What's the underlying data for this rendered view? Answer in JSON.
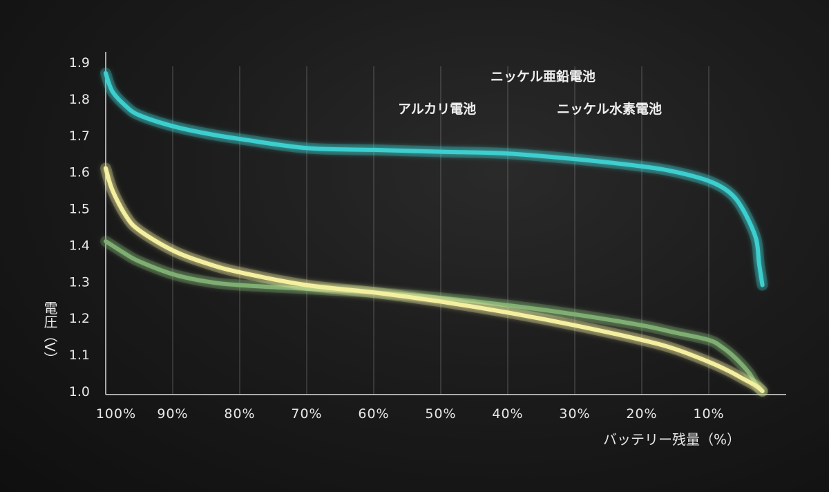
{
  "chart_data": {
    "type": "line",
    "title": "",
    "xlabel": "バッテリー残量（%）",
    "ylabel": "電圧（V）",
    "x_ticks": [
      "100%",
      "90%",
      "80%",
      "70%",
      "60%",
      "50%",
      "40%",
      "30%",
      "20%",
      "10%"
    ],
    "x_tick_values": [
      100,
      90,
      80,
      70,
      60,
      50,
      40,
      30,
      20,
      10
    ],
    "y_ticks": [
      "1.9",
      "1.8",
      "1.7",
      "1.6",
      "1.5",
      "1.4",
      "1.3",
      "1.2",
      "1.1",
      "1.0"
    ],
    "y_tick_values": [
      1.9,
      1.8,
      1.7,
      1.6,
      1.5,
      1.4,
      1.3,
      1.2,
      1.1,
      1.0
    ],
    "xlim": [
      100,
      0
    ],
    "ylim": [
      1.0,
      1.9
    ],
    "grid": "vertical",
    "series": [
      {
        "name": "ニッケル亜鉛電池",
        "color": "#3ecfcf",
        "x": [
          100,
          99,
          97,
          95,
          90,
          85,
          80,
          70,
          60,
          50,
          40,
          30,
          20,
          15,
          10,
          7,
          5,
          3,
          2.5,
          2
        ],
        "y": [
          1.87,
          1.82,
          1.78,
          1.755,
          1.725,
          1.705,
          1.69,
          1.665,
          1.66,
          1.655,
          1.65,
          1.635,
          1.615,
          1.6,
          1.575,
          1.545,
          1.5,
          1.42,
          1.35,
          1.29
        ]
      },
      {
        "name": "アルカリ電池",
        "color": "#f5f0a0",
        "x": [
          100,
          99,
          97,
          95,
          90,
          85,
          80,
          70,
          60,
          50,
          40,
          30,
          20,
          15,
          10,
          7,
          5,
          3,
          2
        ],
        "y": [
          1.61,
          1.55,
          1.48,
          1.44,
          1.385,
          1.35,
          1.325,
          1.29,
          1.27,
          1.245,
          1.215,
          1.18,
          1.14,
          1.115,
          1.08,
          1.055,
          1.035,
          1.015,
          1.0
        ]
      },
      {
        "name": "ニッケル水素電池",
        "color": "#7fae72",
        "x": [
          100,
          97,
          95,
          90,
          85,
          80,
          70,
          60,
          50,
          40,
          30,
          20,
          15,
          10,
          8,
          6,
          4,
          3,
          2
        ],
        "y": [
          1.41,
          1.375,
          1.355,
          1.32,
          1.3,
          1.29,
          1.28,
          1.27,
          1.255,
          1.235,
          1.21,
          1.18,
          1.16,
          1.14,
          1.12,
          1.09,
          1.05,
          1.02,
          1.0
        ]
      }
    ],
    "legend": {
      "placement": "top-right",
      "items": [
        {
          "label": "ニッケル亜鉛電池",
          "color": "#3ecfcf"
        },
        {
          "label": "アルカリ電池",
          "color": "#f5f0a0"
        },
        {
          "label": "ニッケル水素電池",
          "color": "#7fae72"
        }
      ]
    }
  }
}
